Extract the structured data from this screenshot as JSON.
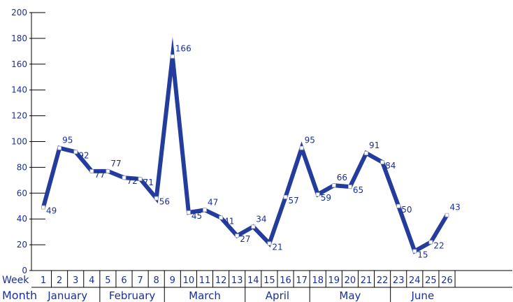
{
  "chart_data": {
    "type": "line",
    "title": "",
    "xlabel": "",
    "ylabel": "",
    "ylim": [
      0,
      200
    ],
    "yticks": [
      0,
      20,
      40,
      60,
      80,
      100,
      120,
      140,
      160,
      180,
      200
    ],
    "row_labels": {
      "week": "Week",
      "month": "Month"
    },
    "x": [
      1,
      2,
      3,
      4,
      5,
      6,
      7,
      8,
      9,
      10,
      11,
      12,
      13,
      14,
      15,
      16,
      17,
      18,
      19,
      20,
      21,
      22,
      23,
      24,
      25,
      26
    ],
    "series": [
      {
        "values": [
          49,
          95,
          92,
          77,
          77,
          72,
          71,
          56,
          166,
          45,
          47,
          41,
          27,
          34,
          21,
          57,
          95,
          59,
          66,
          65,
          91,
          84,
          50,
          15,
          22,
          43
        ]
      }
    ],
    "months": [
      {
        "label": "January",
        "start_week": 1,
        "end_week": 4
      },
      {
        "label": "February",
        "start_week": 5,
        "end_week": 8
      },
      {
        "label": "March",
        "start_week": 9,
        "end_week": 13
      },
      {
        "label": "April",
        "start_week": 14,
        "end_week": 17
      },
      {
        "label": "May",
        "start_week": 18,
        "end_week": 22
      },
      {
        "label": "June",
        "start_week": 23,
        "end_week": 26
      }
    ],
    "grid": false,
    "colors": {
      "line": "#243c9c",
      "text": "#1a2f9a",
      "axis": "#000000"
    }
  }
}
